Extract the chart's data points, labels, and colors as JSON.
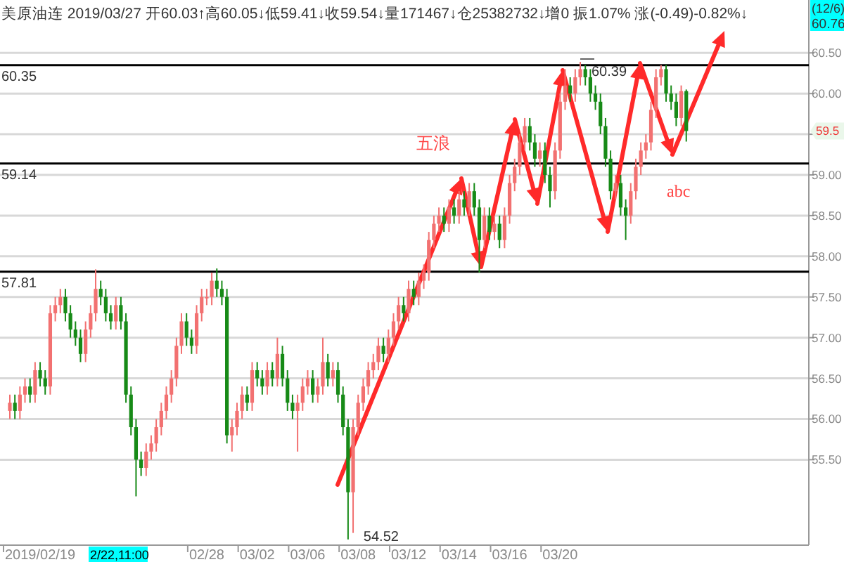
{
  "chart_data": {
    "type": "candlestick",
    "title": "美原油连 2019/03/27 开60.03↑高60.05↓低59.41↓收59.54↓量171467↓仓25382732↓增0 振1.07% 涨(-0.49)-0.82%↓",
    "categories": [
      null,
      null,
      null,
      null,
      null,
      null,
      "2019/02/19",
      null,
      null,
      null,
      null,
      null,
      null,
      null,
      null,
      null,
      null,
      null,
      null,
      null,
      null,
      null,
      null,
      null,
      null,
      null,
      null,
      null,
      null,
      null,
      null,
      null,
      null,
      null,
      null,
      null,
      null,
      null,
      null,
      "02/28",
      null,
      null,
      null,
      null,
      null,
      null,
      null,
      null,
      null,
      "03/02",
      null,
      null,
      null,
      null,
      null,
      null,
      null,
      null,
      null,
      "03/06",
      null,
      null,
      null,
      null,
      null,
      null,
      null,
      null,
      null,
      "03/08",
      null,
      null,
      null,
      null,
      null,
      null,
      null,
      null,
      null,
      "03/12",
      null,
      null,
      null,
      null,
      null,
      null,
      null,
      null,
      null,
      "03/14",
      null,
      null,
      null,
      null,
      null,
      null,
      null,
      null,
      null,
      "03/16",
      null,
      null,
      null,
      null,
      null,
      null,
      null,
      null,
      null,
      "03/20",
      null,
      null,
      null,
      null,
      null,
      null,
      null,
      null,
      null,
      null,
      null,
      null,
      null,
      null,
      null,
      null,
      null,
      null,
      null,
      null,
      null,
      null,
      null,
      null,
      null,
      null,
      null,
      null,
      null,
      null,
      null,
      null,
      null,
      null,
      null,
      null,
      null,
      null,
      null,
      null,
      null,
      null,
      null,
      null,
      null,
      null,
      null,
      null
    ],
    "ohlc": [
      [
        56.1,
        56.3,
        56.0,
        56.2
      ],
      [
        56.2,
        56.3,
        56.0,
        56.1
      ],
      [
        56.1,
        56.4,
        56.0,
        56.3
      ],
      [
        56.3,
        56.5,
        56.2,
        56.4
      ],
      [
        56.4,
        56.5,
        56.2,
        56.3
      ],
      [
        56.3,
        56.7,
        56.2,
        56.6
      ],
      [
        56.6,
        56.7,
        56.4,
        56.5
      ],
      [
        56.5,
        56.6,
        56.3,
        56.4
      ],
      [
        56.4,
        57.4,
        56.3,
        57.3
      ],
      [
        57.3,
        57.5,
        57.2,
        57.4
      ],
      [
        57.4,
        57.6,
        57.3,
        57.5
      ],
      [
        57.5,
        57.6,
        57.2,
        57.3
      ],
      [
        57.3,
        57.4,
        57.0,
        57.1
      ],
      [
        57.1,
        57.2,
        56.9,
        57.0
      ],
      [
        57.0,
        57.1,
        56.7,
        56.8
      ],
      [
        56.8,
        57.2,
        56.7,
        57.1
      ],
      [
        57.1,
        57.4,
        57.0,
        57.3
      ],
      [
        57.3,
        57.84,
        57.2,
        57.6
      ],
      [
        57.6,
        57.7,
        57.4,
        57.5
      ],
      [
        57.5,
        57.6,
        57.2,
        57.3
      ],
      [
        57.3,
        57.4,
        57.1,
        57.2
      ],
      [
        57.2,
        57.5,
        57.1,
        57.4
      ],
      [
        57.4,
        57.5,
        57.1,
        57.2
      ],
      [
        57.2,
        57.3,
        56.2,
        56.3
      ],
      [
        56.3,
        56.4,
        55.8,
        55.9
      ],
      [
        55.9,
        56.0,
        55.05,
        55.5
      ],
      [
        55.5,
        55.6,
        55.3,
        55.4
      ],
      [
        55.4,
        55.7,
        55.3,
        55.6
      ],
      [
        55.6,
        55.8,
        55.5,
        55.7
      ],
      [
        55.7,
        56.0,
        55.6,
        55.9
      ],
      [
        55.9,
        56.2,
        55.8,
        56.1
      ],
      [
        56.1,
        56.4,
        56.0,
        56.3
      ],
      [
        56.3,
        56.6,
        56.2,
        56.5
      ],
      [
        56.5,
        57.0,
        56.4,
        56.9
      ],
      [
        56.9,
        57.3,
        56.8,
        57.2
      ],
      [
        57.2,
        57.3,
        56.9,
        57.0
      ],
      [
        57.0,
        57.1,
        56.8,
        56.9
      ],
      [
        56.9,
        57.4,
        56.8,
        57.3
      ],
      [
        57.3,
        57.6,
        57.2,
        57.5
      ],
      [
        57.5,
        57.6,
        57.4,
        57.5
      ],
      [
        57.5,
        57.8,
        57.4,
        57.7
      ],
      [
        57.7,
        57.85,
        57.5,
        57.6
      ],
      [
        57.6,
        57.7,
        57.4,
        57.5
      ],
      [
        57.5,
        57.6,
        55.7,
        55.8
      ],
      [
        55.8,
        56.0,
        55.6,
        55.9
      ],
      [
        55.9,
        56.2,
        55.8,
        56.1
      ],
      [
        56.1,
        56.4,
        56.0,
        56.3
      ],
      [
        56.3,
        56.4,
        56.1,
        56.2
      ],
      [
        56.2,
        56.7,
        56.1,
        56.6
      ],
      [
        56.6,
        56.7,
        56.4,
        56.5
      ],
      [
        56.5,
        56.6,
        56.3,
        56.4
      ],
      [
        56.4,
        56.7,
        56.3,
        56.6
      ],
      [
        56.6,
        56.7,
        56.4,
        56.5
      ],
      [
        56.5,
        57.0,
        56.4,
        56.8
      ],
      [
        56.8,
        56.9,
        56.4,
        56.5
      ],
      [
        56.5,
        56.6,
        56.1,
        56.2
      ],
      [
        56.2,
        56.3,
        56.0,
        56.1
      ],
      [
        56.1,
        56.3,
        55.6,
        56.2
      ],
      [
        56.2,
        56.5,
        56.1,
        56.4
      ],
      [
        56.4,
        56.6,
        56.3,
        56.5
      ],
      [
        56.5,
        56.6,
        56.2,
        56.3
      ],
      [
        56.3,
        56.5,
        56.2,
        56.4
      ],
      [
        56.4,
        57.0,
        56.3,
        56.7
      ],
      [
        56.7,
        56.8,
        56.4,
        56.5
      ],
      [
        56.5,
        56.7,
        56.4,
        56.6
      ],
      [
        56.6,
        56.7,
        56.2,
        56.3
      ],
      [
        56.3,
        56.4,
        55.8,
        55.9
      ],
      [
        55.9,
        56.0,
        54.52,
        55.1
      ],
      [
        55.1,
        56.0,
        54.6,
        55.9
      ],
      [
        55.9,
        56.3,
        55.8,
        56.2
      ],
      [
        56.2,
        56.5,
        56.1,
        56.4
      ],
      [
        56.4,
        56.7,
        56.3,
        56.6
      ],
      [
        56.6,
        56.8,
        56.5,
        56.7
      ],
      [
        56.7,
        57.0,
        56.6,
        56.9
      ],
      [
        56.9,
        57.0,
        56.7,
        56.8
      ],
      [
        56.8,
        57.1,
        56.7,
        57.0
      ],
      [
        57.0,
        57.3,
        56.9,
        57.2
      ],
      [
        57.2,
        57.5,
        57.1,
        57.4
      ],
      [
        57.4,
        57.5,
        57.2,
        57.3
      ],
      [
        57.3,
        57.7,
        57.2,
        57.6
      ],
      [
        57.6,
        57.7,
        57.4,
        57.5
      ],
      [
        57.5,
        57.8,
        57.4,
        57.7
      ],
      [
        57.7,
        57.9,
        57.6,
        57.8
      ],
      [
        57.8,
        58.3,
        57.7,
        58.2
      ],
      [
        58.2,
        58.5,
        58.1,
        58.4
      ],
      [
        58.4,
        58.6,
        58.3,
        58.5
      ],
      [
        58.5,
        58.6,
        58.3,
        58.4
      ],
      [
        58.4,
        58.7,
        58.3,
        58.6
      ],
      [
        58.6,
        58.7,
        58.4,
        58.5
      ],
      [
        58.5,
        58.8,
        58.4,
        58.7
      ],
      [
        58.7,
        58.8,
        58.5,
        58.6
      ],
      [
        58.6,
        58.9,
        58.5,
        58.8
      ],
      [
        58.8,
        58.9,
        58.5,
        58.6
      ],
      [
        58.6,
        58.7,
        57.8,
        58.2
      ],
      [
        58.2,
        58.6,
        58.1,
        58.5
      ],
      [
        58.5,
        58.6,
        58.2,
        58.3
      ],
      [
        58.3,
        58.5,
        58.2,
        58.4
      ],
      [
        58.4,
        58.5,
        58.1,
        58.2
      ],
      [
        58.2,
        58.6,
        58.1,
        58.5
      ],
      [
        58.5,
        59.0,
        58.4,
        58.9
      ],
      [
        58.9,
        59.2,
        58.8,
        59.1
      ],
      [
        59.1,
        59.5,
        59.0,
        59.4
      ],
      [
        59.4,
        59.7,
        59.3,
        59.6
      ],
      [
        59.6,
        59.7,
        59.3,
        59.4
      ],
      [
        59.4,
        59.5,
        59.1,
        59.2
      ],
      [
        59.2,
        59.4,
        59.1,
        59.3
      ],
      [
        59.3,
        59.4,
        58.9,
        59.0
      ],
      [
        59.0,
        59.1,
        58.6,
        58.8
      ],
      [
        58.8,
        59.4,
        58.7,
        59.3
      ],
      [
        59.3,
        60.0,
        59.2,
        59.9
      ],
      [
        59.9,
        60.3,
        59.8,
        60.1
      ],
      [
        60.1,
        60.2,
        59.9,
        60.0
      ],
      [
        60.0,
        60.3,
        59.9,
        60.2
      ],
      [
        60.2,
        60.39,
        60.1,
        60.3
      ],
      [
        60.3,
        60.35,
        60.1,
        60.2
      ],
      [
        60.2,
        60.3,
        59.9,
        60.0
      ],
      [
        60.0,
        60.1,
        59.8,
        59.9
      ],
      [
        59.9,
        60.0,
        59.5,
        59.6
      ],
      [
        59.6,
        59.7,
        59.1,
        59.2
      ],
      [
        59.2,
        59.3,
        58.7,
        58.8
      ],
      [
        58.8,
        59.0,
        58.7,
        58.9
      ],
      [
        58.9,
        59.0,
        58.5,
        58.6
      ],
      [
        58.6,
        58.7,
        58.2,
        58.5
      ],
      [
        58.5,
        58.9,
        58.4,
        58.8
      ],
      [
        58.8,
        59.2,
        58.7,
        59.1
      ],
      [
        59.1,
        59.4,
        59.0,
        59.3
      ],
      [
        59.3,
        59.5,
        59.2,
        59.4
      ],
      [
        59.4,
        59.9,
        59.3,
        59.8
      ],
      [
        59.8,
        60.3,
        59.7,
        60.2
      ],
      [
        60.2,
        60.35,
        60.1,
        60.3
      ],
      [
        60.3,
        60.35,
        59.9,
        60.0
      ],
      [
        60.0,
        60.1,
        59.8,
        59.9
      ],
      [
        59.9,
        60.0,
        59.6,
        59.7
      ],
      [
        59.7,
        60.1,
        59.6,
        60.03
      ],
      [
        60.03,
        60.05,
        59.41,
        59.54
      ],
      null,
      null,
      null,
      null,
      null,
      null,
      null,
      null,
      null,
      null,
      null,
      null,
      null,
      null,
      null,
      null,
      null,
      null,
      null,
      null,
      null,
      null,
      null
    ],
    "colors": [
      "#f27171",
      "#178a17",
      "#f27171",
      "#f27171",
      "#178a17",
      "#f27171",
      "#178a17",
      "#178a17",
      "#f27171",
      "#f27171",
      "#f27171",
      "#178a17",
      "#178a17",
      "#178a17",
      "#178a17",
      "#f27171",
      "#f27171",
      "#f27171",
      "#178a17",
      "#178a17",
      "#178a17",
      "#f27171",
      "#178a17",
      "#178a17",
      "#178a17",
      "#178a17",
      "#178a17",
      "#f27171",
      "#f27171",
      "#f27171",
      "#f27171",
      "#f27171",
      "#f27171",
      "#f27171",
      "#f27171",
      "#178a17",
      "#178a17",
      "#f27171",
      "#f27171",
      "#f27171",
      "#f27171",
      "#178a17",
      "#178a17",
      "#178a17",
      "#f27171",
      "#f27171",
      "#f27171",
      "#178a17",
      "#f27171",
      "#178a17",
      "#178a17",
      "#f27171",
      "#178a17",
      "#f27171",
      "#178a17",
      "#178a17",
      "#178a17",
      "#f27171",
      "#f27171",
      "#f27171",
      "#178a17",
      "#f27171",
      "#f27171",
      "#178a17",
      "#f27171",
      "#178a17",
      "#178a17",
      "#178a17",
      "#f27171",
      "#f27171",
      "#f27171",
      "#f27171",
      "#f27171",
      "#f27171",
      "#178a17",
      "#f27171",
      "#f27171",
      "#f27171",
      "#178a17",
      "#f27171",
      "#178a17",
      "#f27171",
      "#f27171",
      "#f27171",
      "#f27171",
      "#f27171",
      "#178a17",
      "#f27171",
      "#178a17",
      "#f27171",
      "#178a17",
      "#f27171",
      "#178a17",
      "#178a17",
      "#f27171",
      "#178a17",
      "#f27171",
      "#178a17",
      "#f27171",
      "#f27171",
      "#f27171",
      "#f27171",
      "#f27171",
      "#178a17",
      "#178a17",
      "#f27171",
      "#178a17",
      "#178a17",
      "#f27171",
      "#f27171",
      "#f27171",
      "#178a17",
      "#f27171",
      "#f27171",
      "#178a17",
      "#178a17",
      "#178a17",
      "#178a17",
      "#178a17",
      "#178a17",
      "#f27171",
      "#178a17",
      "#178a17",
      "#f27171",
      "#f27171",
      "#f27171",
      "#f27171",
      "#f27171",
      "#f27171",
      "#f27171",
      "#178a17",
      "#178a17",
      "#178a17",
      "#f27171",
      "#178a17",
      null,
      null,
      null,
      null,
      null,
      null,
      null,
      null,
      null,
      null,
      null,
      null,
      null,
      null,
      null,
      null,
      null,
      null,
      null,
      null,
      null,
      null,
      null
    ],
    "ylim": [
      54.45,
      61.15
    ],
    "yticks": [
      {
        "value": 55.5,
        "label": "55.50"
      },
      {
        "value": 56,
        "label": "56.00"
      },
      {
        "value": 56.5,
        "label": "56.50"
      },
      {
        "value": 57,
        "label": "57.00"
      },
      {
        "value": 57.5,
        "label": "57.50"
      },
      {
        "value": 58,
        "label": "58.00"
      },
      {
        "value": 58.5,
        "label": "58.50"
      },
      {
        "value": 59,
        "label": "59.00"
      },
      {
        "value": 59.5,
        "label": null
      },
      {
        "value": 60,
        "label": "60.00"
      },
      {
        "value": 60.5,
        "label": "60.50"
      }
    ],
    "grid": "y",
    "ref_lines": [
      {
        "axis": "y",
        "value": 60.35,
        "label": "60.35",
        "color": "#000000"
      },
      {
        "axis": "y",
        "value": 59.14,
        "label": "59.14",
        "color": "#000000"
      },
      {
        "axis": "y",
        "value": 57.81,
        "label": "57.81",
        "color": "#000000"
      }
    ],
    "annotations": [
      {
        "text": "60.39",
        "y": 60.39
      },
      "54.52",
      "五浪",
      "abc",
      "(12/6)",
      "60.76",
      "59.5",
      "2/22,11:00"
    ]
  }
}
